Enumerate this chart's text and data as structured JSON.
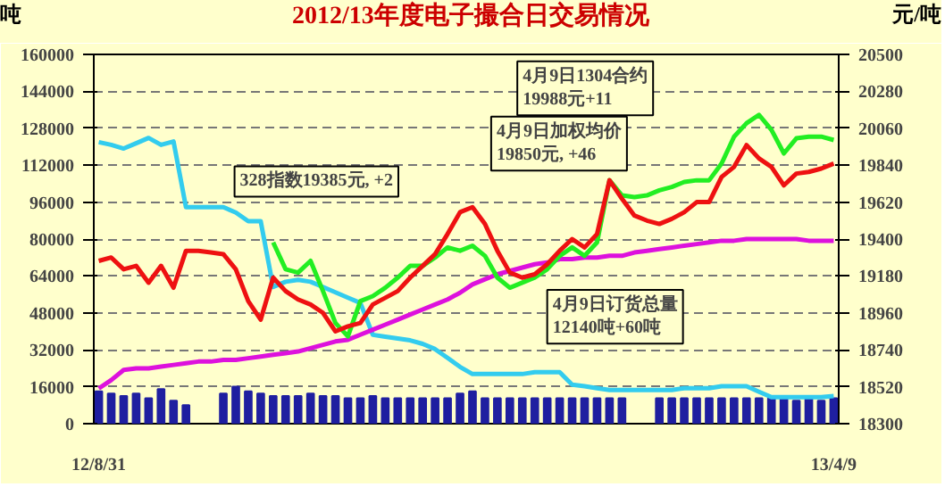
{
  "chart_data": {
    "type": "line",
    "title": "2012/13年度电子撮合日交易情况",
    "ylabel": "吨",
    "y2label": "元/吨",
    "categories": [
      "12/8/31",
      null,
      null,
      null,
      null,
      null,
      null,
      null,
      null,
      null,
      null,
      null,
      null,
      null,
      null,
      null,
      null,
      null,
      null,
      null,
      null,
      null,
      null,
      null,
      null,
      null,
      null,
      null,
      null,
      null,
      null,
      null,
      null,
      null,
      null,
      null,
      null,
      null,
      null,
      null,
      null,
      null,
      null,
      null,
      null,
      null,
      null,
      null,
      null,
      null,
      null,
      null,
      null,
      null,
      null,
      null,
      null,
      null,
      null,
      "13/4/9"
    ],
    "series": [
      {
        "type": "bar",
        "color": "#1f1fa0",
        "values": [
          14000,
          13000,
          12000,
          13000,
          11000,
          15000,
          10000,
          8000,
          null,
          null,
          13000,
          16000,
          14000,
          13000,
          12000,
          12000,
          12000,
          13000,
          12000,
          12000,
          11000,
          11000,
          12000,
          11000,
          11000,
          11000,
          11000,
          11000,
          11000,
          13000,
          14000,
          11000,
          11000,
          11000,
          11000,
          11000,
          11000,
          11000,
          11000,
          11000,
          11000,
          11000,
          11000,
          null,
          null,
          11000,
          11000,
          11000,
          11000,
          11000,
          11000,
          11000,
          11000,
          11000,
          11000,
          11000,
          10000,
          11000,
          10000,
          11000
        ]
      },
      {
        "color": "#33ccee",
        "values": [
          122000,
          120800,
          119200,
          121500,
          123800,
          120800,
          122300,
          93800,
          93800,
          93800,
          93800,
          91500,
          87700,
          87700,
          59200,
          61500,
          62300,
          61500,
          59200,
          56900,
          54600,
          52300,
          38500,
          37700,
          36900,
          36100,
          34600,
          32300,
          28500,
          24600,
          21500,
          21500,
          21500,
          21500,
          21500,
          22300,
          22300,
          22300,
          16900,
          16200,
          15400,
          14600,
          14600,
          14600,
          14600,
          14600,
          14600,
          15400,
          15400,
          15400,
          16200,
          16200,
          16200,
          13800,
          11500,
          11500,
          11500,
          11500,
          11500,
          12000
        ]
      },
      {
        "axis": "y2",
        "color": "#dd11dd",
        "values": [
          18510,
          18560,
          18620,
          18630,
          18630,
          18640,
          18650,
          18660,
          18670,
          18670,
          18680,
          18680,
          18690,
          18700,
          18710,
          18720,
          18730,
          18750,
          18770,
          18790,
          18800,
          18830,
          18860,
          18890,
          18920,
          18950,
          18980,
          19010,
          19040,
          19080,
          19130,
          19160,
          19190,
          19210,
          19230,
          19250,
          19260,
          19280,
          19280,
          19290,
          19290,
          19300,
          19300,
          19320,
          19330,
          19340,
          19350,
          19360,
          19370,
          19380,
          19390,
          19390,
          19400,
          19400,
          19400,
          19400,
          19400,
          19390,
          19390,
          19390
        ]
      },
      {
        "axis": "y2",
        "color": "#22ee22",
        "values": [
          null,
          null,
          null,
          null,
          null,
          null,
          null,
          null,
          null,
          null,
          null,
          null,
          null,
          null,
          19380,
          19220,
          19200,
          19270,
          19090,
          18900,
          18820,
          19030,
          19060,
          19110,
          19170,
          19240,
          19240,
          19290,
          19350,
          19330,
          19360,
          19300,
          19170,
          19110,
          19140,
          19170,
          19220,
          19300,
          19350,
          19300,
          19380,
          19750,
          19660,
          19650,
          19660,
          19690,
          19710,
          19740,
          19750,
          19750,
          19850,
          20010,
          20090,
          20140,
          20050,
          19910,
          20000,
          20010,
          20010,
          19990
        ]
      },
      {
        "axis": "y2",
        "color": "#ee1111",
        "values": [
          19270,
          19290,
          19220,
          19240,
          19140,
          19240,
          19110,
          19330,
          19330,
          19320,
          19310,
          19220,
          19030,
          18920,
          19170,
          19090,
          19040,
          19010,
          18960,
          18850,
          18880,
          18900,
          19010,
          19050,
          19090,
          19170,
          19240,
          19310,
          19430,
          19560,
          19590,
          19490,
          19330,
          19200,
          19170,
          19190,
          19250,
          19330,
          19400,
          19350,
          19430,
          19750,
          19640,
          19540,
          19510,
          19490,
          19520,
          19560,
          19620,
          19620,
          19770,
          19830,
          19960,
          19880,
          19830,
          19720,
          19790,
          19800,
          19820,
          19850
        ]
      }
    ],
    "ylim": [
      0,
      160000
    ],
    "yticks": [
      0,
      16000,
      32000,
      48000,
      64000,
      80000,
      96000,
      112000,
      128000,
      144000,
      160000
    ],
    "y2lim": [
      18300,
      20500
    ],
    "y2ticks": [
      18300,
      18520,
      18740,
      18960,
      19180,
      19400,
      19620,
      19840,
      20060,
      20280,
      20500
    ],
    "grid": "y",
    "annotations": [
      "4月9日1304合约\n19988元+11",
      "4月9日加权均价\n19850元, +46",
      "328指数19385元, +2",
      "4月9日订货总量\n12140吨+60吨"
    ]
  }
}
